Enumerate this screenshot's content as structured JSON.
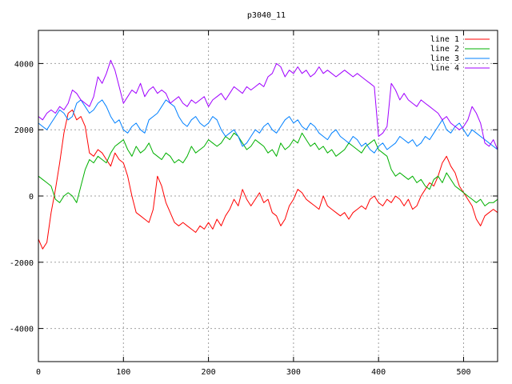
{
  "chart_data": {
    "type": "line",
    "title": "p3040_11",
    "xlabel": "",
    "ylabel": "",
    "xlim": [
      0,
      540
    ],
    "ylim": [
      -5000,
      5000
    ],
    "x_ticks": [
      0,
      100,
      200,
      300,
      400,
      500
    ],
    "y_ticks": [
      -4000,
      -2000,
      0,
      2000,
      4000
    ],
    "grid": true,
    "legend_position": "top-right",
    "series": [
      {
        "name": "line 1",
        "color": "#ff0000",
        "x": [
          0,
          5,
          10,
          15,
          20,
          25,
          30,
          35,
          40,
          45,
          50,
          55,
          60,
          65,
          70,
          75,
          80,
          85,
          90,
          95,
          100,
          105,
          110,
          115,
          120,
          125,
          130,
          135,
          140,
          145,
          150,
          155,
          160,
          165,
          170,
          175,
          180,
          185,
          190,
          195,
          200,
          205,
          210,
          215,
          220,
          225,
          230,
          235,
          240,
          245,
          250,
          255,
          260,
          265,
          270,
          275,
          280,
          285,
          290,
          295,
          300,
          305,
          310,
          315,
          320,
          325,
          330,
          335,
          340,
          345,
          350,
          355,
          360,
          365,
          370,
          375,
          380,
          385,
          390,
          395,
          400,
          405,
          410,
          415,
          420,
          425,
          430,
          435,
          440,
          445,
          450,
          455,
          460,
          465,
          470,
          475,
          480,
          485,
          490,
          495,
          500,
          505,
          510,
          515,
          520,
          525,
          530,
          535,
          540
        ],
        "values": [
          -1300,
          -1600,
          -1400,
          -500,
          200,
          1000,
          1900,
          2500,
          2600,
          2300,
          2400,
          2100,
          1300,
          1200,
          1400,
          1300,
          1100,
          900,
          1300,
          1100,
          1000,
          600,
          0,
          -500,
          -600,
          -700,
          -800,
          -400,
          600,
          300,
          -200,
          -500,
          -800,
          -900,
          -800,
          -900,
          -1000,
          -1100,
          -900,
          -1000,
          -800,
          -1000,
          -700,
          -900,
          -600,
          -400,
          -100,
          -300,
          200,
          -100,
          -300,
          -100,
          100,
          -200,
          -100,
          -500,
          -600,
          -900,
          -700,
          -300,
          -100,
          200,
          100,
          -100,
          -200,
          -300,
          -400,
          0,
          -300,
          -400,
          -500,
          -600,
          -500,
          -700,
          -500,
          -400,
          -300,
          -400,
          -100,
          0,
          -200,
          -300,
          -100,
          -200,
          0,
          -100,
          -300,
          -100,
          -400,
          -300,
          0,
          200,
          400,
          300,
          600,
          1000,
          1200,
          900,
          700,
          300,
          100,
          -100,
          -300,
          -700,
          -900,
          -600,
          -500,
          -400,
          -500
        ]
      },
      {
        "name": "line 2",
        "color": "#00b000",
        "x": [
          0,
          5,
          10,
          15,
          20,
          25,
          30,
          35,
          40,
          45,
          50,
          55,
          60,
          65,
          70,
          75,
          80,
          85,
          90,
          95,
          100,
          105,
          110,
          115,
          120,
          125,
          130,
          135,
          140,
          145,
          150,
          155,
          160,
          165,
          170,
          175,
          180,
          185,
          190,
          195,
          200,
          205,
          210,
          215,
          220,
          225,
          230,
          235,
          240,
          245,
          250,
          255,
          260,
          265,
          270,
          275,
          280,
          285,
          290,
          295,
          300,
          305,
          310,
          315,
          320,
          325,
          330,
          335,
          340,
          345,
          350,
          355,
          360,
          365,
          370,
          375,
          380,
          385,
          390,
          395,
          400,
          405,
          410,
          415,
          420,
          425,
          430,
          435,
          440,
          445,
          450,
          455,
          460,
          465,
          470,
          475,
          480,
          485,
          490,
          495,
          500,
          505,
          510,
          515,
          520,
          525,
          530,
          535,
          540
        ],
        "values": [
          600,
          500,
          400,
          300,
          -100,
          -200,
          0,
          100,
          0,
          -200,
          300,
          800,
          1100,
          1000,
          1200,
          1100,
          1000,
          1300,
          1500,
          1600,
          1700,
          1400,
          1200,
          1500,
          1300,
          1400,
          1600,
          1300,
          1200,
          1100,
          1300,
          1200,
          1000,
          1100,
          1000,
          1200,
          1500,
          1300,
          1400,
          1500,
          1700,
          1600,
          1500,
          1600,
          1800,
          1700,
          1900,
          1800,
          1600,
          1400,
          1500,
          1700,
          1600,
          1500,
          1300,
          1400,
          1200,
          1600,
          1400,
          1500,
          1700,
          1600,
          1900,
          1700,
          1500,
          1600,
          1400,
          1500,
          1300,
          1400,
          1200,
          1300,
          1400,
          1600,
          1500,
          1400,
          1300,
          1500,
          1600,
          1700,
          1400,
          1300,
          1200,
          800,
          600,
          700,
          600,
          500,
          600,
          400,
          500,
          300,
          200,
          500,
          600,
          400,
          700,
          500,
          300,
          200,
          100,
          0,
          -100,
          -200,
          -100,
          -300,
          -200,
          -200,
          -100
        ]
      },
      {
        "name": "line 3",
        "color": "#0080ff",
        "x": [
          0,
          5,
          10,
          15,
          20,
          25,
          30,
          35,
          40,
          45,
          50,
          55,
          60,
          65,
          70,
          75,
          80,
          85,
          90,
          95,
          100,
          105,
          110,
          115,
          120,
          125,
          130,
          135,
          140,
          145,
          150,
          155,
          160,
          165,
          170,
          175,
          180,
          185,
          190,
          195,
          200,
          205,
          210,
          215,
          220,
          225,
          230,
          235,
          240,
          245,
          250,
          255,
          260,
          265,
          270,
          275,
          280,
          285,
          290,
          295,
          300,
          305,
          310,
          315,
          320,
          325,
          330,
          335,
          340,
          345,
          350,
          355,
          360,
          365,
          370,
          375,
          380,
          385,
          390,
          395,
          400,
          405,
          410,
          415,
          420,
          425,
          430,
          435,
          440,
          445,
          450,
          455,
          460,
          465,
          470,
          475,
          480,
          485,
          490,
          495,
          500,
          505,
          510,
          515,
          520,
          525,
          530,
          535,
          540
        ],
        "values": [
          2200,
          2100,
          2000,
          2200,
          2400,
          2600,
          2500,
          2300,
          2400,
          2800,
          2900,
          2700,
          2500,
          2600,
          2800,
          2900,
          2700,
          2400,
          2200,
          2300,
          2000,
          1900,
          2100,
          2200,
          2000,
          1900,
          2300,
          2400,
          2500,
          2700,
          2900,
          2800,
          2700,
          2400,
          2200,
          2100,
          2300,
          2400,
          2200,
          2100,
          2200,
          2400,
          2300,
          2000,
          1800,
          1900,
          2000,
          1800,
          1500,
          1600,
          1800,
          2000,
          1900,
          2100,
          2200,
          2000,
          1900,
          2100,
          2300,
          2400,
          2200,
          2300,
          2100,
          2000,
          2200,
          2100,
          1900,
          1800,
          1700,
          1900,
          2000,
          1800,
          1700,
          1600,
          1800,
          1700,
          1500,
          1600,
          1400,
          1300,
          1500,
          1600,
          1400,
          1500,
          1600,
          1800,
          1700,
          1600,
          1700,
          1500,
          1600,
          1800,
          1700,
          1900,
          2100,
          2300,
          2000,
          1900,
          2100,
          2200,
          2000,
          1800,
          2000,
          1900,
          1800,
          1700,
          1600,
          1500,
          1400
        ]
      },
      {
        "name": "line 4",
        "color": "#a000ff",
        "x": [
          0,
          5,
          10,
          15,
          20,
          25,
          30,
          35,
          40,
          45,
          50,
          55,
          60,
          65,
          70,
          75,
          80,
          85,
          90,
          95,
          100,
          105,
          110,
          115,
          120,
          125,
          130,
          135,
          140,
          145,
          150,
          155,
          160,
          165,
          170,
          175,
          180,
          185,
          190,
          195,
          200,
          205,
          210,
          215,
          220,
          225,
          230,
          235,
          240,
          245,
          250,
          255,
          260,
          265,
          270,
          275,
          280,
          285,
          290,
          295,
          300,
          305,
          310,
          315,
          320,
          325,
          330,
          335,
          340,
          345,
          350,
          355,
          360,
          365,
          370,
          375,
          380,
          385,
          390,
          395,
          400,
          405,
          410,
          415,
          420,
          425,
          430,
          435,
          440,
          445,
          450,
          455,
          460,
          465,
          470,
          475,
          480,
          485,
          490,
          495,
          500,
          505,
          510,
          515,
          520,
          525,
          530,
          535,
          540
        ],
        "values": [
          2400,
          2300,
          2500,
          2600,
          2500,
          2700,
          2600,
          2800,
          3200,
          3100,
          2900,
          2800,
          2700,
          3000,
          3600,
          3400,
          3700,
          4100,
          3800,
          3300,
          2800,
          3000,
          3200,
          3100,
          3400,
          3000,
          3200,
          3300,
          3100,
          3200,
          3100,
          2800,
          2900,
          3000,
          2800,
          2700,
          2900,
          2800,
          2900,
          3000,
          2700,
          2900,
          3000,
          3100,
          2900,
          3100,
          3300,
          3200,
          3100,
          3300,
          3200,
          3300,
          3400,
          3300,
          3600,
          3700,
          4000,
          3900,
          3600,
          3800,
          3700,
          3900,
          3700,
          3800,
          3600,
          3700,
          3900,
          3700,
          3800,
          3700,
          3600,
          3700,
          3800,
          3700,
          3600,
          3700,
          3600,
          3500,
          3400,
          3300,
          1800,
          1900,
          2100,
          3400,
          3200,
          2900,
          3100,
          2900,
          2800,
          2700,
          2900,
          2800,
          2700,
          2600,
          2500,
          2300,
          2400,
          2200,
          2100,
          2000,
          2100,
          2300,
          2700,
          2500,
          2200,
          1600,
          1500,
          1700,
          1400
        ]
      }
    ]
  }
}
